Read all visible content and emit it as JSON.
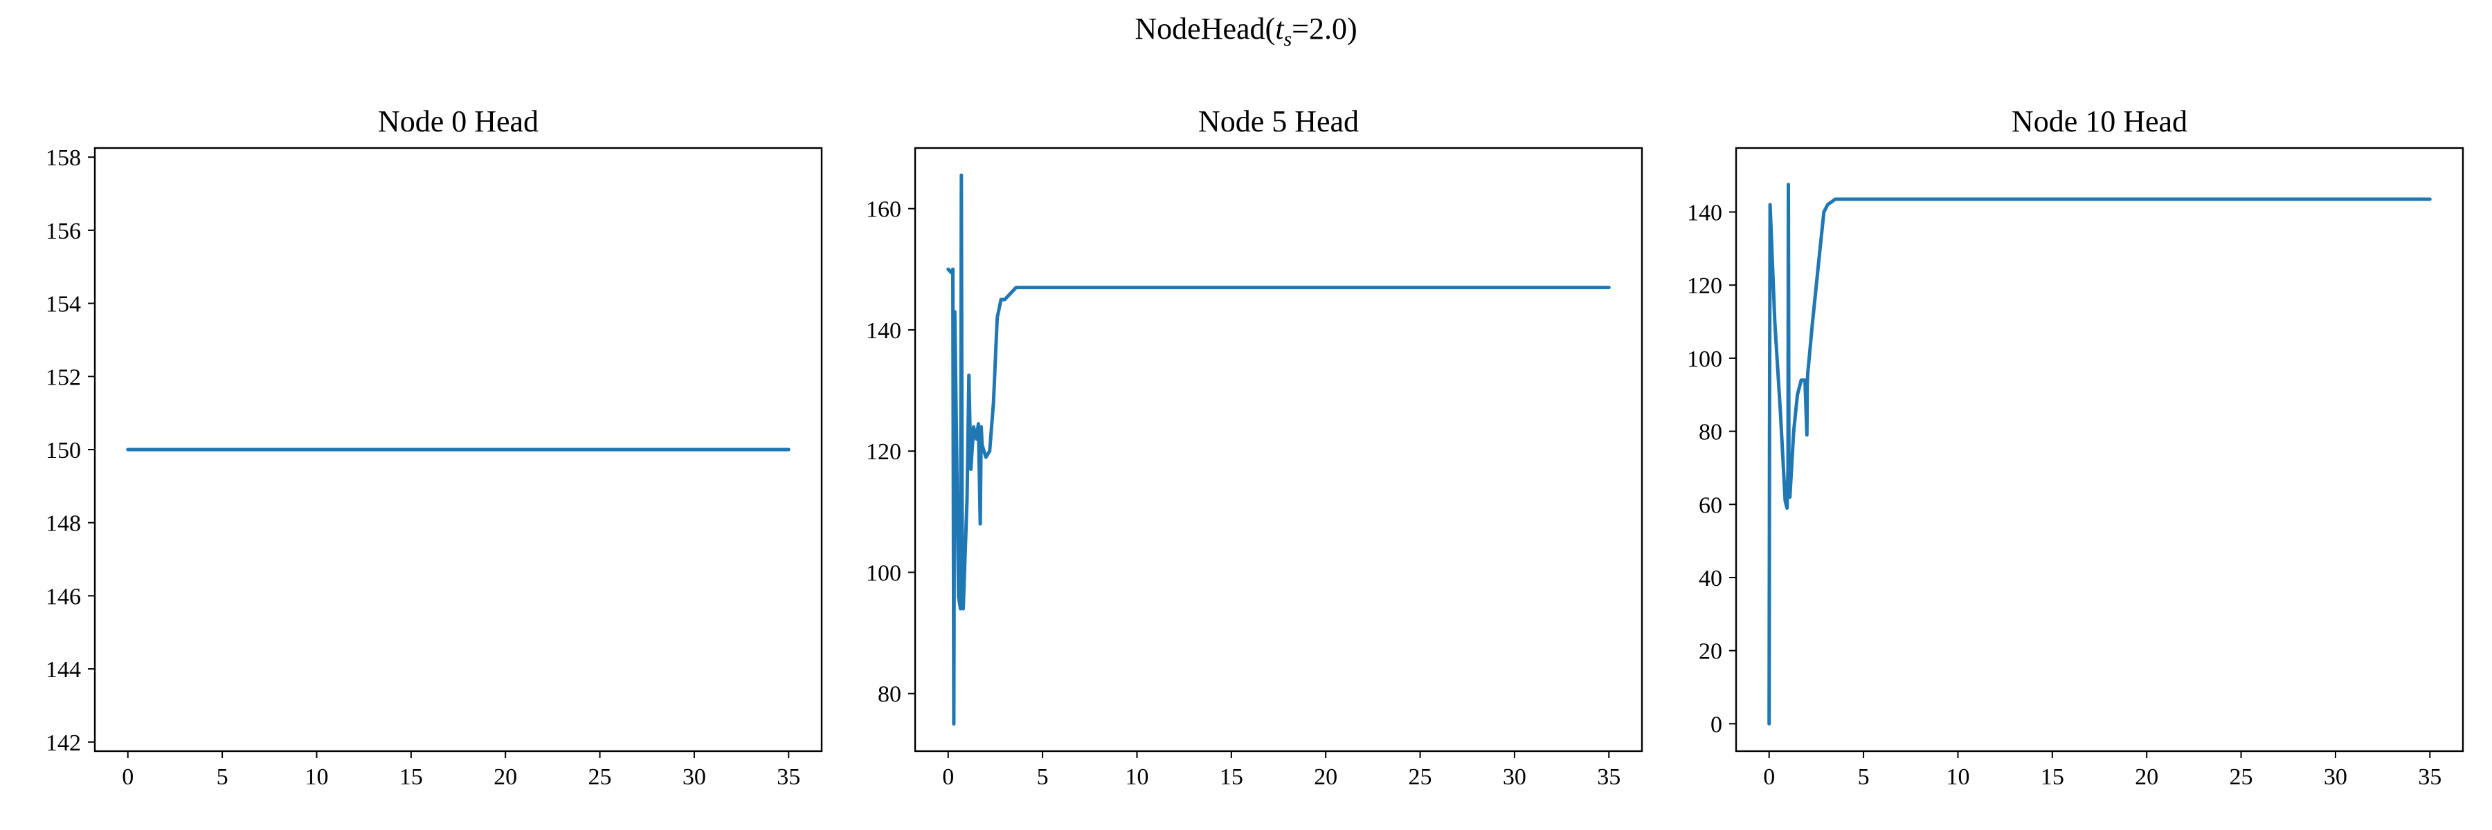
{
  "figure": {
    "title_prefix": "NodeHead(",
    "title_math": "t",
    "title_sub": "s",
    "title_suffix": "=2.0)"
  },
  "colors": {
    "line": "#1f77b4",
    "axes": "#000000",
    "background": "#ffffff"
  },
  "chart_data": [
    {
      "type": "line",
      "title": "Node 0 Head",
      "xlabel": "",
      "ylabel": "",
      "xlim": [
        -1.75,
        36.75
      ],
      "ylim": [
        141.75,
        158.25
      ],
      "xticks": [
        0,
        5,
        10,
        15,
        20,
        25,
        30,
        35
      ],
      "yticks": [
        142,
        144,
        146,
        148,
        150,
        152,
        154,
        156,
        158
      ],
      "grid": false,
      "series": [
        {
          "x": [
            0,
            35
          ],
          "y": [
            150,
            150
          ]
        }
      ]
    },
    {
      "type": "line",
      "title": "Node 5 Head",
      "xlabel": "",
      "ylabel": "",
      "xlim": [
        -1.75,
        36.75
      ],
      "ylim": [
        70.5,
        170.0
      ],
      "xticks": [
        0,
        5,
        10,
        15,
        20,
        25,
        30,
        35
      ],
      "yticks": [
        80,
        100,
        120,
        140,
        160
      ],
      "grid": false,
      "series": [
        {
          "x": [
            0,
            0.15,
            0.25,
            0.3,
            0.35,
            0.45,
            0.55,
            0.65,
            0.7,
            0.75,
            0.8,
            1.0,
            1.1,
            1.2,
            1.35,
            1.5,
            1.6,
            1.7,
            1.75,
            1.8,
            2.0,
            2.2,
            2.4,
            2.6,
            2.8,
            3.0,
            3.3,
            3.6,
            4.0,
            5,
            10,
            15,
            20,
            25,
            30,
            35
          ],
          "y": [
            150,
            149.5,
            150,
            75,
            143,
            120,
            96,
            94,
            165.5,
            95,
            94,
            112,
            132.5,
            117,
            124,
            122,
            124.5,
            108,
            124,
            121,
            119,
            120,
            128,
            142,
            145,
            145,
            146,
            147,
            147,
            147,
            147,
            147,
            147,
            147,
            147,
            147
          ]
        }
      ]
    },
    {
      "type": "line",
      "title": "Node 10 Head",
      "xlabel": "",
      "ylabel": "",
      "xlim": [
        -1.75,
        36.75
      ],
      "ylim": [
        -7.5,
        157.5
      ],
      "xticks": [
        0,
        5,
        10,
        15,
        20,
        25,
        30,
        35
      ],
      "yticks": [
        0,
        20,
        40,
        60,
        80,
        100,
        120,
        140
      ],
      "grid": false,
      "series": [
        {
          "x": [
            0,
            0.02,
            0.05,
            0.3,
            0.6,
            0.85,
            0.95,
            1.0,
            1.02,
            1.05,
            1.1,
            1.3,
            1.5,
            1.7,
            1.9,
            2.0,
            2.02,
            2.05,
            2.3,
            2.6,
            2.9,
            3.1,
            3.5,
            4.0,
            5,
            10,
            15,
            20,
            25,
            30,
            35
          ],
          "y": [
            0,
            80,
            142,
            110,
            85,
            61,
            59,
            70,
            147.5,
            64,
            62,
            80,
            90,
            94,
            94,
            79,
            93,
            96,
            110,
            125,
            140,
            142,
            143.5,
            143.5,
            143.5,
            143.5,
            143.5,
            143.5,
            143.5,
            143.5,
            143.5
          ]
        }
      ]
    }
  ]
}
